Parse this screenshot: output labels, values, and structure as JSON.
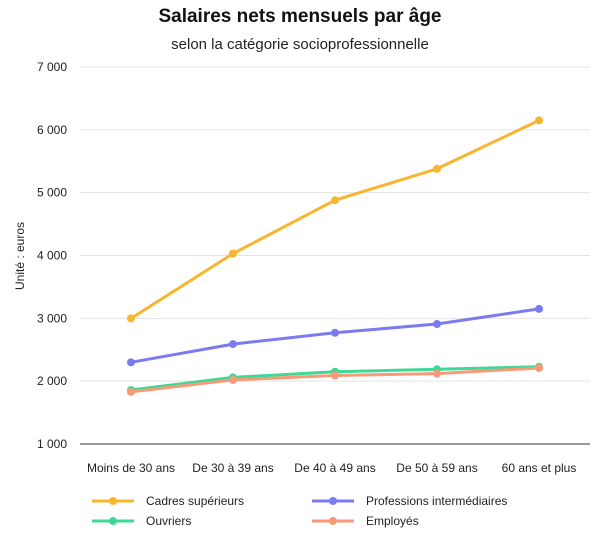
{
  "chart_data": {
    "type": "line",
    "title": "Salaires nets mensuels par âge",
    "subtitle": "selon la catégorie socioprofessionnelle",
    "xlabel": "",
    "ylabel": "Unité : euros",
    "ylim": [
      1000,
      7000
    ],
    "yticks": [
      1000,
      2000,
      3000,
      4000,
      5000,
      6000,
      7000
    ],
    "ytick_labels": [
      "1 000",
      "2 000",
      "3 000",
      "4 000",
      "5 000",
      "6 000",
      "7 000"
    ],
    "categories": [
      "Moins de 30 ans",
      "De 30 à 39 ans",
      "De 40 à 49 ans",
      "De 50 à 59 ans",
      "60 ans et plus"
    ],
    "grid": "horizontal",
    "legend_position": "bottom",
    "series": [
      {
        "name": "Cadres supérieurs",
        "color": "#f9b52d",
        "values": [
          3000,
          4030,
          4880,
          5380,
          6150
        ]
      },
      {
        "name": "Professions intermédiaires",
        "color": "#7b7bef",
        "values": [
          2300,
          2590,
          2770,
          2910,
          3150
        ]
      },
      {
        "name": "Ouvriers",
        "color": "#3ed996",
        "values": [
          1860,
          2060,
          2150,
          2190,
          2230
        ]
      },
      {
        "name": "Employés",
        "color": "#f79a77",
        "values": [
          1830,
          2020,
          2090,
          2120,
          2210
        ]
      }
    ]
  }
}
